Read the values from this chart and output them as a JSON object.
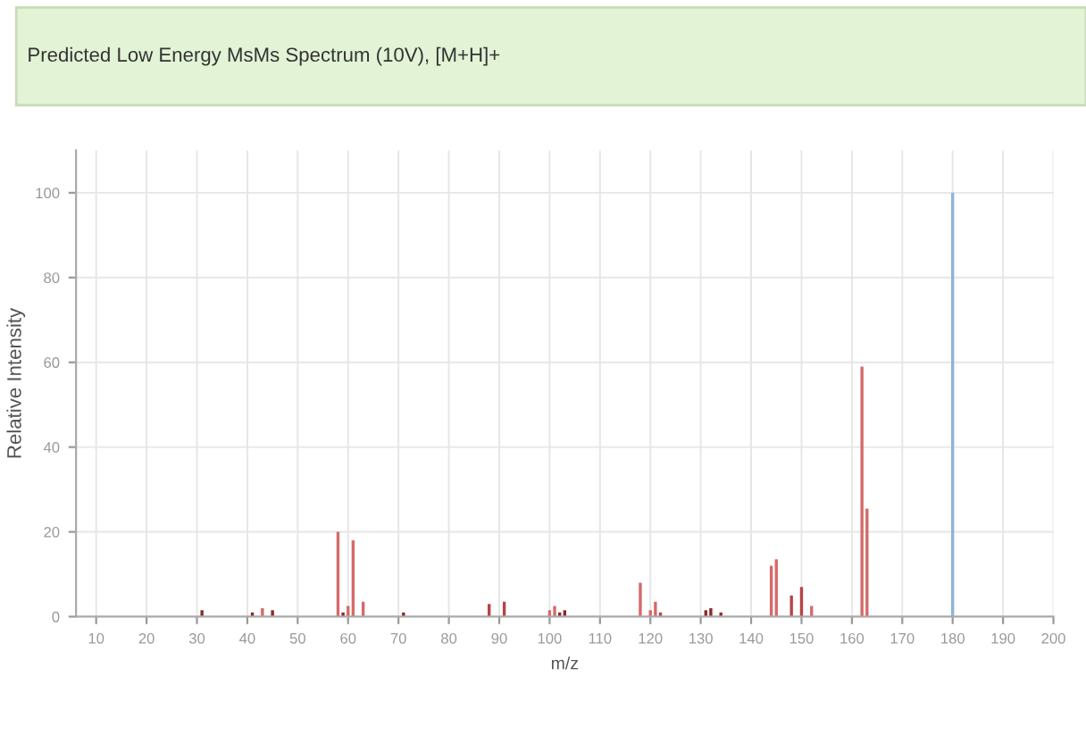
{
  "chart_data": {
    "type": "bar",
    "title": "Predicted Low Energy MsMs Spectrum (10V), [M+H]+",
    "xlabel": "m/z",
    "ylabel": "Relative Intensity",
    "x": [
      31,
      41,
      43,
      45,
      58,
      59,
      60,
      61,
      63,
      71,
      88,
      91,
      100,
      101,
      102,
      103,
      118,
      120,
      121,
      122,
      131,
      132,
      134,
      144,
      145,
      148,
      150,
      152,
      162,
      163,
      180
    ],
    "values": [
      1.5,
      1,
      2,
      1.5,
      20,
      1,
      2.5,
      18,
      3.5,
      1,
      3,
      3.5,
      1.5,
      2.5,
      1,
      1.5,
      8,
      1.5,
      3.5,
      1,
      1.5,
      2,
      1,
      12,
      13.5,
      5,
      7,
      2.5,
      59,
      25.5,
      100
    ],
    "colors": [
      "#8b2a2a",
      "#8b2a2a",
      "#d66a6a",
      "#8b2a2a",
      "#d66a6a",
      "#8b2a2a",
      "#d66a6a",
      "#d66a6a",
      "#d66a6a",
      "#8b2a2a",
      "#b84444",
      "#b84444",
      "#d66a6a",
      "#d66a6a",
      "#8b2a2a",
      "#8b2a2a",
      "#d66a6a",
      "#d66a6a",
      "#d66a6a",
      "#b84444",
      "#8b2a2a",
      "#8b2a2a",
      "#8b2a2a",
      "#d66a6a",
      "#d66a6a",
      "#b84444",
      "#b84444",
      "#d66a6a",
      "#d66a6a",
      "#d66a6a",
      "#8fb4dc"
    ],
    "xlim": [
      6,
      200
    ],
    "xticks": [
      10,
      20,
      30,
      40,
      50,
      60,
      70,
      80,
      90,
      100,
      110,
      120,
      130,
      140,
      150,
      160,
      170,
      180,
      190,
      200
    ],
    "ylim": [
      0,
      110
    ],
    "yticks": [
      0,
      20,
      40,
      60,
      80,
      100
    ],
    "grid": true
  }
}
